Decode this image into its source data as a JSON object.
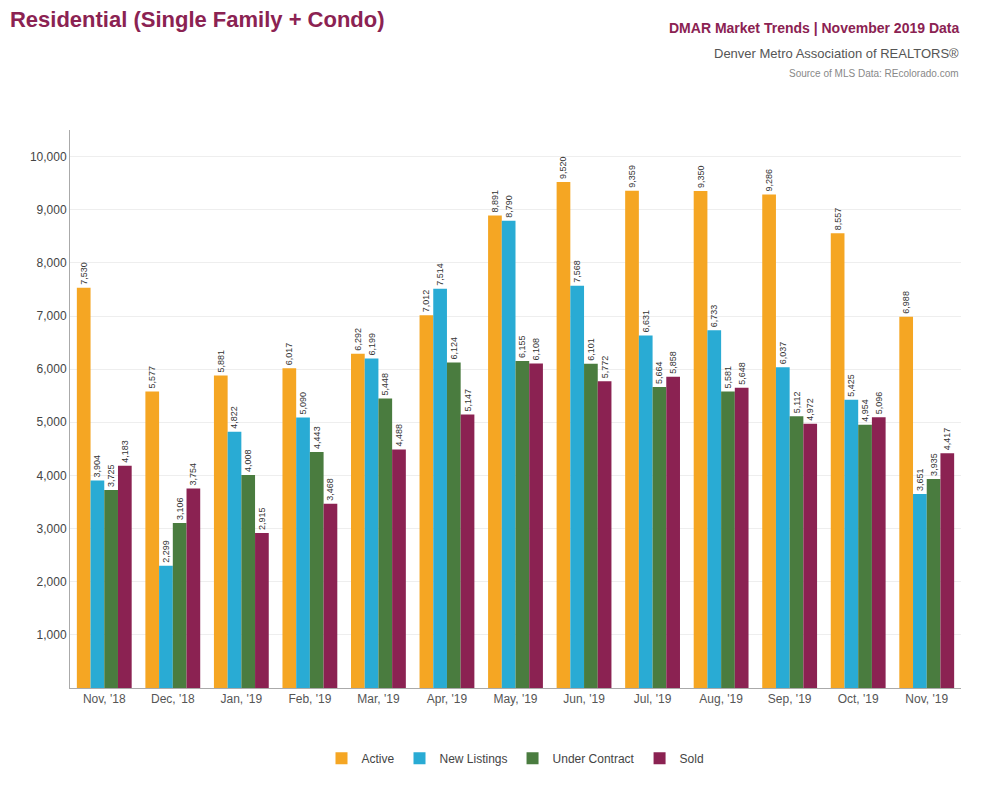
{
  "chart_data": {
    "type": "bar",
    "title": "Residential (Single Family + Condo)",
    "annotations": [
      "DMAR Market Trends | November 2019 Data",
      "Denver Metro Association of REALTORS®",
      "Source of MLS Data: REcolorado.com"
    ],
    "categories": [
      "Nov, '18",
      "Dec, '18",
      "Jan, '19",
      "Feb, '19",
      "Mar, '19",
      "Apr, '19",
      "May, '19",
      "Jun, '19",
      "Jul, '19",
      "Aug, '19",
      "Sep, '19",
      "Oct, '19",
      "Nov, '19"
    ],
    "series": [
      {
        "name": "Active",
        "color": "#F5A623",
        "values": [
          7530,
          5577,
          5881,
          6017,
          6292,
          7012,
          8891,
          9520,
          9359,
          9350,
          9286,
          8557,
          6988
        ],
        "value_labels": [
          "7,530",
          "5,577",
          "5,881",
          "6,017",
          "6,292",
          "7,012",
          "8,891",
          "9,520",
          "9,359",
          "9,350",
          "9,286",
          "8,557",
          "6,988"
        ]
      },
      {
        "name": "New Listings",
        "color": "#29ABD4",
        "values": [
          3904,
          2299,
          4822,
          5090,
          6199,
          7514,
          8790,
          7568,
          6631,
          6733,
          6037,
          5425,
          3651
        ],
        "value_labels": [
          "3,904",
          "2,299",
          "4,822",
          "5,090",
          "6,199",
          "7,514",
          "8,790",
          "7,568",
          "6,631",
          "6,733",
          "6,037",
          "5,425",
          "3,651"
        ]
      },
      {
        "name": "Under Contract",
        "color": "#4A7C3F",
        "values": [
          3725,
          3106,
          4008,
          4443,
          5448,
          6124,
          6155,
          6101,
          5664,
          5581,
          5112,
          4954,
          3935
        ],
        "value_labels": [
          "3,725",
          "3,106",
          "4,008",
          "4,443",
          "5,448",
          "6,124",
          "6,155",
          "6,101",
          "5,664",
          "5,581",
          "5,112",
          "4,954",
          "3,935"
        ]
      },
      {
        "name": "Sold",
        "color": "#8B2252",
        "values": [
          4183,
          3754,
          2915,
          3468,
          4488,
          5147,
          6108,
          5772,
          5858,
          5648,
          4972,
          5096,
          4417
        ],
        "value_labels": [
          "4,183",
          "3,754",
          "2,915",
          "3,468",
          "4,488",
          "5,147",
          "6,108",
          "5,772",
          "5,858",
          "5,648",
          "4,972",
          "5,096",
          "4,417"
        ]
      }
    ],
    "ylim": [
      0,
      10500
    ],
    "yticks": [
      {
        "value": 1000,
        "label": "1,000"
      },
      {
        "value": 2000,
        "label": "2,000"
      },
      {
        "value": 3000,
        "label": "3,000"
      },
      {
        "value": 4000,
        "label": "4,000"
      },
      {
        "value": 5000,
        "label": "5,000"
      },
      {
        "value": 6000,
        "label": "6,000"
      },
      {
        "value": 7000,
        "label": "7,000"
      },
      {
        "value": 8000,
        "label": "8,000"
      },
      {
        "value": 9000,
        "label": "9,000"
      },
      {
        "value": 10000,
        "label": "10,000"
      }
    ],
    "grid": true,
    "legend": "bottom",
    "data_labels": true
  }
}
